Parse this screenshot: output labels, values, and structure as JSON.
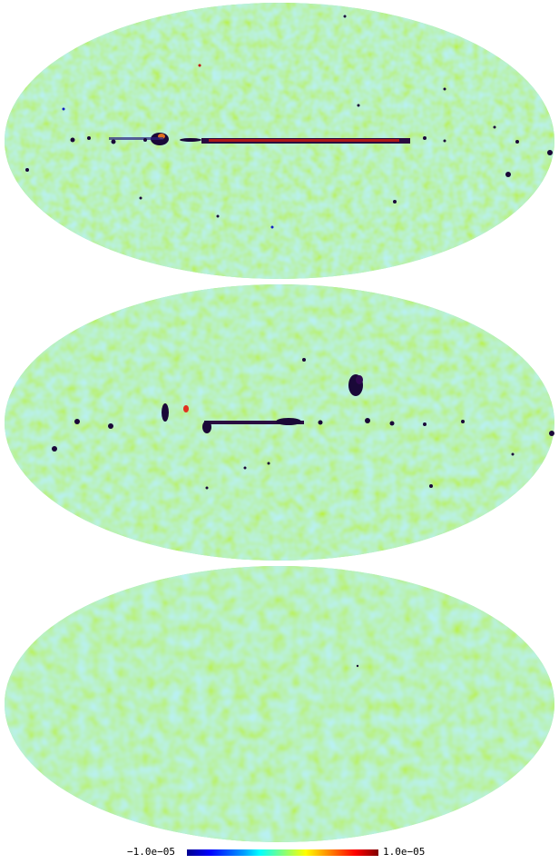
{
  "colorbar": {
    "min_label": "−1.0e−05",
    "max_label": "1.0e−05",
    "colormap": [
      "#00008f",
      "#0000ff",
      "#00a0ff",
      "#00ffff",
      "#7fff7f",
      "#ffff00",
      "#ff8000",
      "#ff0000",
      "#800000"
    ]
  },
  "maps": [
    {
      "name": "sky-map-top",
      "projection": "mollweide",
      "description_level": "strong galactic plane residuals"
    },
    {
      "name": "sky-map-middle",
      "projection": "mollweide",
      "description_level": "moderate galactic plane residuals"
    },
    {
      "name": "sky-map-bottom",
      "projection": "mollweide",
      "description_level": "nearly clean"
    }
  ],
  "colors": {
    "background_field": "#7fe8a0",
    "field_cyan": "#3fd8d0",
    "field_yellow": "#c8f070",
    "residual_dark": "#1a0838",
    "residual_red": "#c01010",
    "residual_blue": "#1020c0"
  }
}
